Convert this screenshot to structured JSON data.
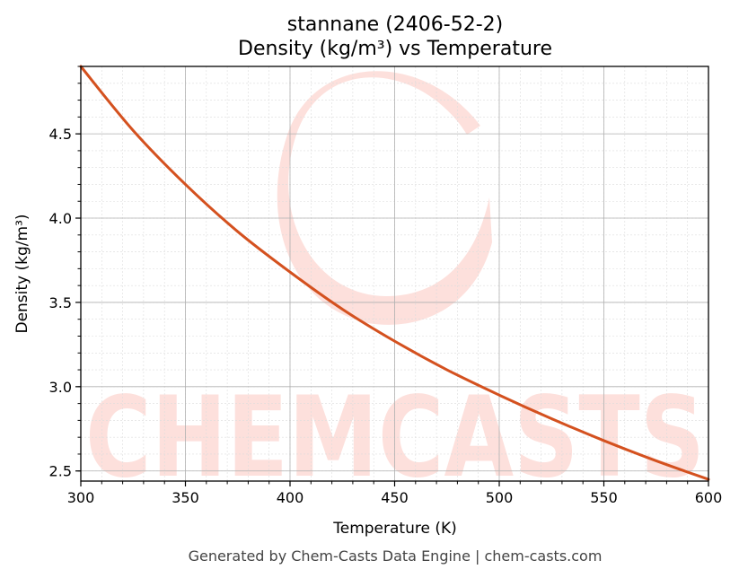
{
  "chart_data": {
    "type": "line",
    "title_line1": "stannane (2406-52-2)",
    "title_line2": "Density (kg/m³) vs Temperature",
    "xlabel": "Temperature (K)",
    "ylabel": "Density (kg/m³)",
    "xlim": [
      300,
      600
    ],
    "ylim": [
      2.44,
      4.9
    ],
    "xticks": [
      "300",
      "350",
      "400",
      "450",
      "500",
      "550",
      "600"
    ],
    "yticks": [
      "2.5",
      "3.0",
      "3.5",
      "4.0",
      "4.5"
    ],
    "grid": true,
    "series": [
      {
        "color": "#d4511f",
        "x": [
          300,
          325,
          350,
          375,
          400,
          425,
          450,
          475,
          500,
          525,
          550,
          575,
          600
        ],
        "y": [
          4.9,
          4.52,
          4.2,
          3.92,
          3.68,
          3.46,
          3.27,
          3.1,
          2.95,
          2.81,
          2.68,
          2.56,
          2.45
        ]
      }
    ]
  },
  "footer": "Generated by Chem-Casts Data Engine | chem-casts.com",
  "watermark": {
    "text": "CHEMCASTS",
    "color": "#fde0dc"
  }
}
